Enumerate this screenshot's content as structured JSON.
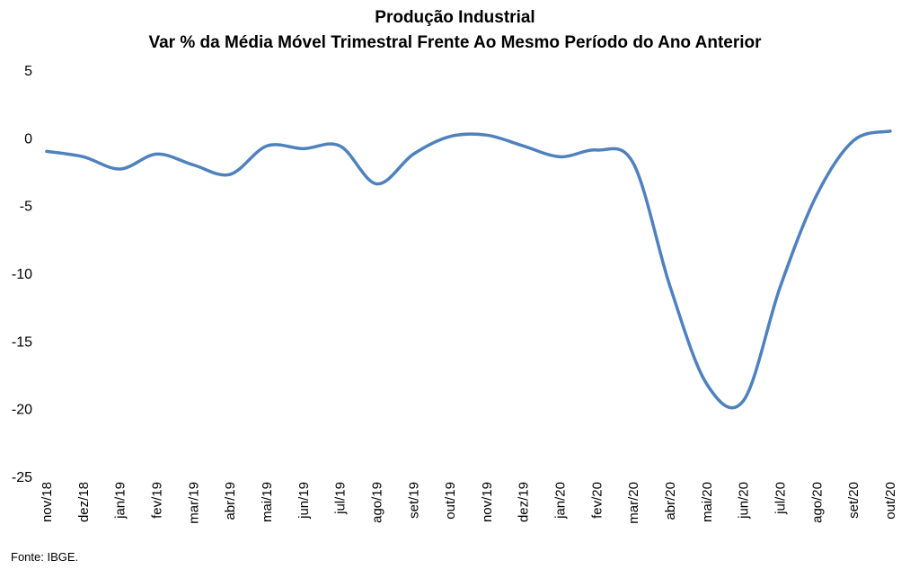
{
  "chart_data": {
    "type": "line",
    "title": "Produção Industrial",
    "subtitle": "Var % da Média Móvel Trimestral Frente Ao Mesmo Período do Ano Anterior",
    "xlabel": "",
    "ylabel": "",
    "ylim": [
      -25,
      5
    ],
    "yticks": [
      "5",
      "0",
      "-5",
      "-10",
      "-15",
      "-20",
      "-25"
    ],
    "ytick_values": [
      5,
      0,
      -5,
      -10,
      -15,
      -20,
      -25
    ],
    "categories": [
      "nov/18",
      "dez/18",
      "jan/19",
      "fev/19",
      "mar/19",
      "abr/19",
      "mai/19",
      "jun/19",
      "jul/19",
      "ago/19",
      "set/19",
      "out/19",
      "nov/19",
      "dez/19",
      "jan/20",
      "fev/20",
      "mar/20",
      "abr/20",
      "mai/20",
      "jun/20",
      "jul/20",
      "ago/20",
      "set/20",
      "out/20"
    ],
    "series": [
      {
        "color": "#4F81BD",
        "values": [
          -1.0,
          -1.4,
          -2.3,
          -1.2,
          -2.0,
          -2.7,
          -0.6,
          -0.8,
          -0.6,
          -3.4,
          -1.2,
          0.1,
          0.2,
          -0.6,
          -1.4,
          -0.9,
          -1.9,
          -11.0,
          -18.2,
          -19.4,
          -11.0,
          -4.2,
          -0.2,
          0.5
        ]
      }
    ],
    "grid": false,
    "legend": "none"
  },
  "source": "Fonte: IBGE."
}
